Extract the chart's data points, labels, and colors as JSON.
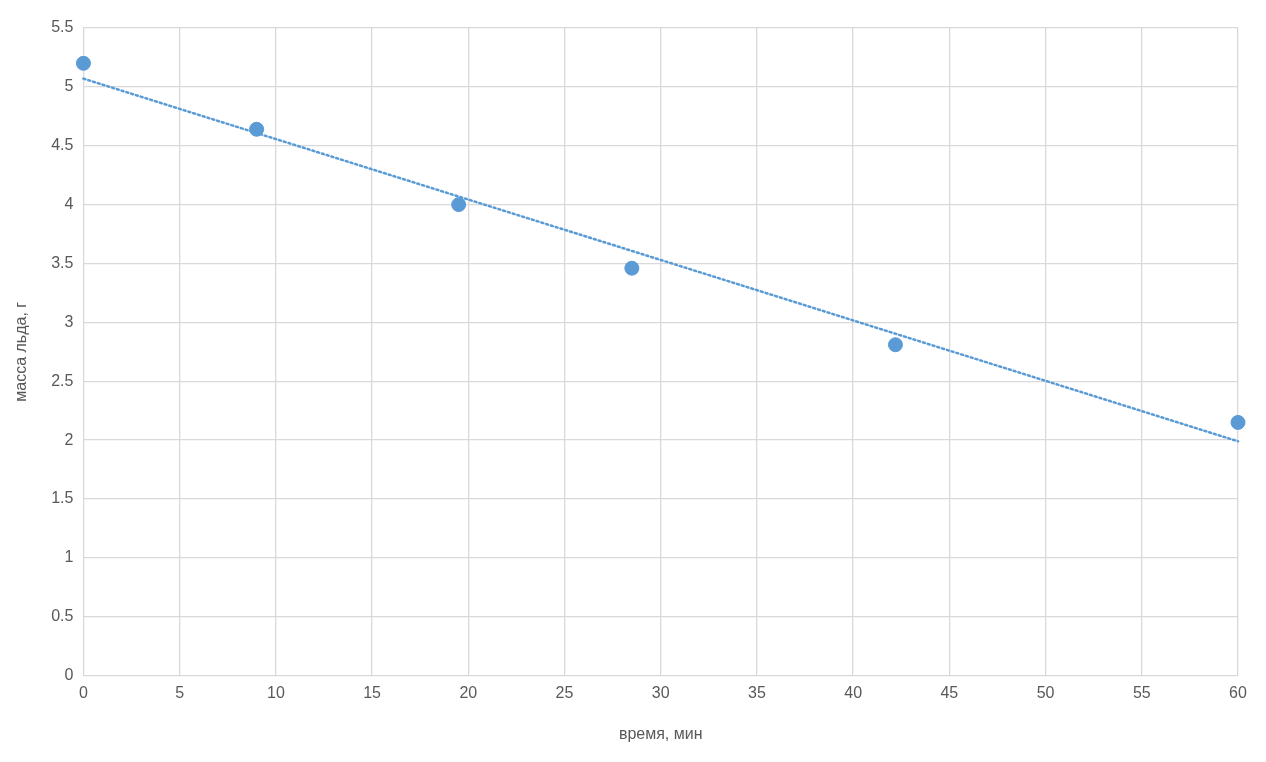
{
  "chart_data": {
    "type": "scatter",
    "xlabel": "время, мин",
    "ylabel": "масса льда, г",
    "xlim": [
      0,
      60
    ],
    "xticks": [
      0,
      5,
      10,
      15,
      20,
      25,
      30,
      35,
      40,
      45,
      50,
      55,
      60
    ],
    "ylim": [
      0,
      5.5
    ],
    "yticks": [
      0,
      0.5,
      1,
      1.5,
      2,
      2.5,
      3,
      3.5,
      4,
      4.5,
      5,
      5.5
    ],
    "grid": true,
    "legend": false,
    "series": [
      {
        "color": "#5b9bd5",
        "marker": "circle",
        "x": [
          0,
          9,
          19.5,
          28.5,
          42.2,
          60
        ],
        "values": [
          5.2,
          4.64,
          4.0,
          3.46,
          2.81,
          2.15
        ]
      },
      {
        "type": "line",
        "color": "#5b9bd5",
        "marker": "none",
        "line_style": "dotted",
        "x": [
          0,
          60
        ],
        "values": [
          5.07,
          1.99
        ]
      }
    ]
  }
}
